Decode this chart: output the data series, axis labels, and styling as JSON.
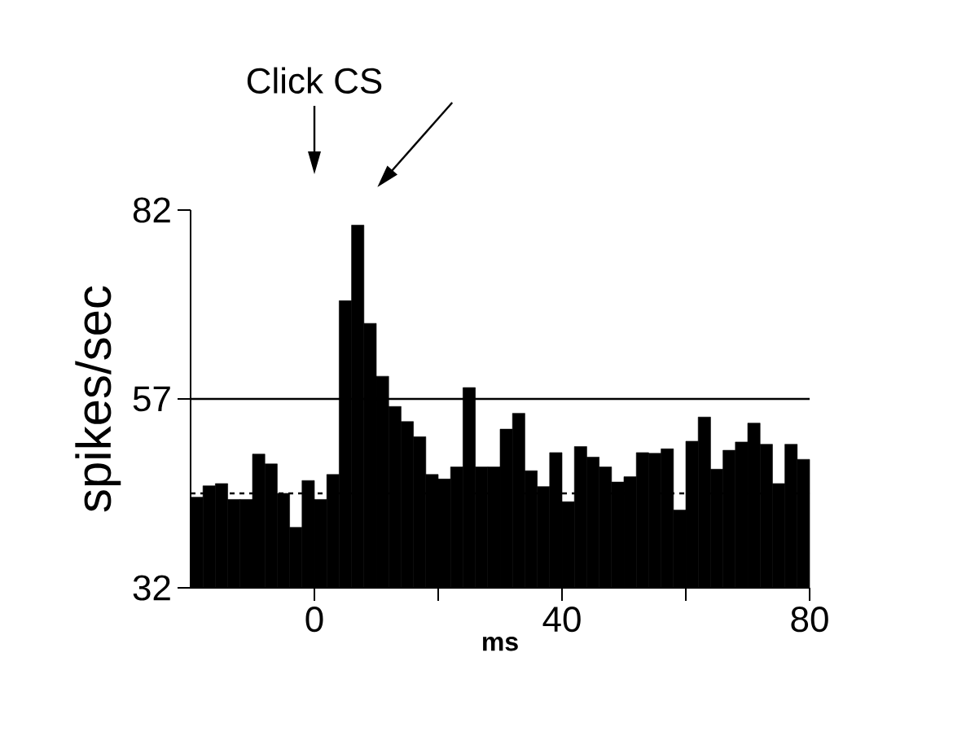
{
  "chart_data": {
    "type": "histogram",
    "xlabel": "ms",
    "ylabel": "spikes/sec",
    "color": "#000000",
    "bins": [
      -20,
      -18,
      -16,
      -14,
      -12,
      -10,
      -8,
      -6,
      -4,
      -2,
      0,
      2,
      4,
      6,
      8,
      10,
      12,
      14,
      16,
      18,
      20,
      22,
      24,
      26,
      28,
      30,
      32,
      34,
      36,
      38,
      40,
      42,
      44,
      46,
      48,
      50,
      52,
      54,
      56,
      58,
      60,
      62,
      64,
      66,
      68,
      70,
      72,
      74,
      76,
      78,
      80
    ],
    "values": [
      44,
      45.5,
      45.8,
      43.7,
      43.7,
      49.7,
      48.4,
      44.5,
      40,
      46.2,
      43.7,
      47,
      70,
      80,
      67,
      60,
      56,
      54,
      52,
      47,
      46.4,
      48,
      58.5,
      48,
      48,
      53,
      55.1,
      47.5,
      45.4,
      49.9,
      43.4,
      50.7,
      49.3,
      48,
      46,
      46.7,
      49.9,
      49.8,
      50.4,
      42.3,
      51.4,
      54.6,
      47.7,
      50.2,
      51.3,
      53.8,
      51,
      45.8,
      51,
      49
    ],
    "xlim": [
      -20,
      80
    ],
    "ylim": [
      32,
      82
    ],
    "xticks": [
      0,
      {
        "value": 20,
        "label": null
      },
      40,
      {
        "value": 60,
        "label": null
      },
      80
    ],
    "yticks": [
      32,
      57,
      82
    ],
    "ref_lines": [
      {
        "axis": "y",
        "value": 57,
        "line_style": "solid"
      },
      {
        "axis": "y",
        "value": 44.5,
        "line_style": "dashed"
      }
    ],
    "annotations": [
      "Click CS"
    ]
  }
}
